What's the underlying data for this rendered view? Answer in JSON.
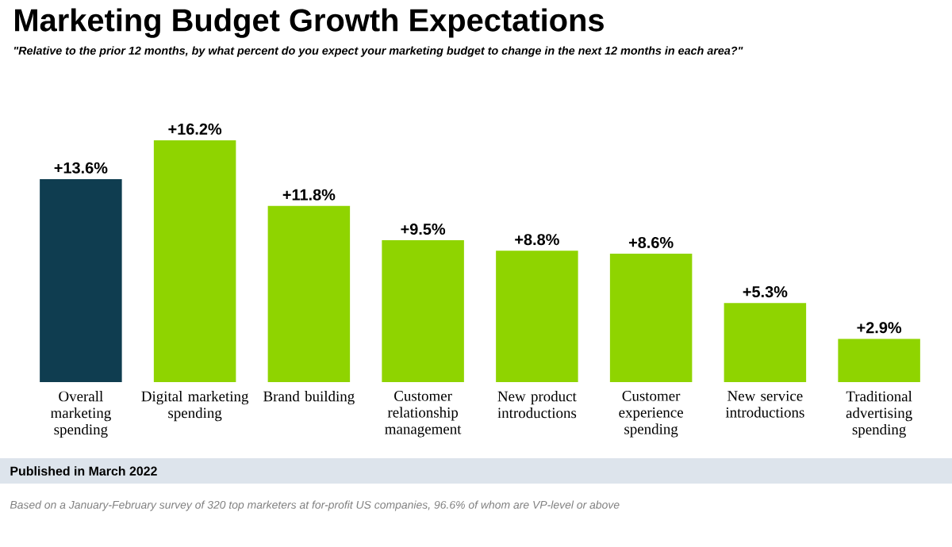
{
  "chart_data": {
    "type": "bar",
    "title": "Marketing Budget Growth Expectations",
    "subtitle": "\"Relative to the prior 12 months, by what percent do you expect your marketing budget to change in the next 12 months in each area?\"",
    "categories": [
      "Overall marketing spending",
      "Digital marketing spending",
      "Brand building",
      "Customer relationship management",
      "New product introductions",
      "Customer experience spending",
      "New service introductions",
      "Traditional advertising spending"
    ],
    "values": [
      13.6,
      16.2,
      11.8,
      9.5,
      8.8,
      8.6,
      5.3,
      2.9
    ],
    "value_labels": [
      "+13.6%",
      "+16.2%",
      "+11.8%",
      "+9.5%",
      "+8.8%",
      "+8.6%",
      "+5.3%",
      "+2.9%"
    ],
    "colors": [
      "#0f3d50",
      "#8fd400",
      "#8fd400",
      "#8fd400",
      "#8fd400",
      "#8fd400",
      "#8fd400",
      "#8fd400"
    ],
    "annotations": [
      "Published in March 2022",
      "Based on a January-February survey of 320 top marketers at for-profit US companies, 96.6% of whom are VP-level or above"
    ]
  }
}
